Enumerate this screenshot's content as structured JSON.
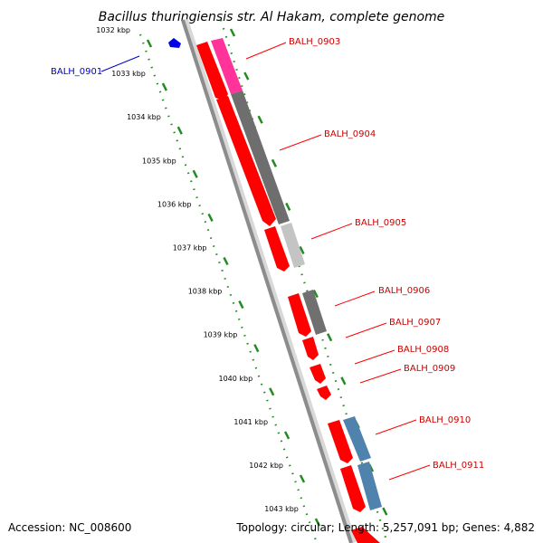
{
  "title": "Bacillus thuringiensis str. Al Hakam, complete genome",
  "footer": {
    "accession": "Accession: NC_008600",
    "topology": "Topology: circular; Length: 5,257,091 bp; Genes: 4,882"
  },
  "colors": {
    "backbone": "#8c8c8c",
    "tick": "#228b22",
    "forward_gene": "#ff0000",
    "reverse_gene_blue_label": "#0000cc",
    "label_red": "#cc0000",
    "label_blue": "#0000cc",
    "pink": "#ff3fa0",
    "dark_gray": "#707070",
    "light_gray": "#c0c0c0",
    "steel_blue": "#4f83ad"
  },
  "ticks": [
    "1032 kbp",
    "1033 kbp",
    "1034 kbp",
    "1035 kbp",
    "1036 kbp",
    "1037 kbp",
    "1038 kbp",
    "1039 kbp",
    "1040 kbp",
    "1041 kbp",
    "1042 kbp",
    "1043 kbp"
  ],
  "gene_labels": [
    {
      "text": "BALH_0901",
      "color": "#0000cc"
    },
    {
      "text": "BALH_0903",
      "color": "#cc0000"
    },
    {
      "text": "BALH_0904",
      "color": "#cc0000"
    },
    {
      "text": "BALH_0905",
      "color": "#cc0000"
    },
    {
      "text": "BALH_0906",
      "color": "#cc0000"
    },
    {
      "text": "BALH_0907",
      "color": "#cc0000"
    },
    {
      "text": "BALH_0908",
      "color": "#cc0000"
    },
    {
      "text": "BALH_0909",
      "color": "#cc0000"
    },
    {
      "text": "BALH_0910",
      "color": "#cc0000"
    },
    {
      "text": "BALH_0911",
      "color": "#cc0000"
    }
  ]
}
